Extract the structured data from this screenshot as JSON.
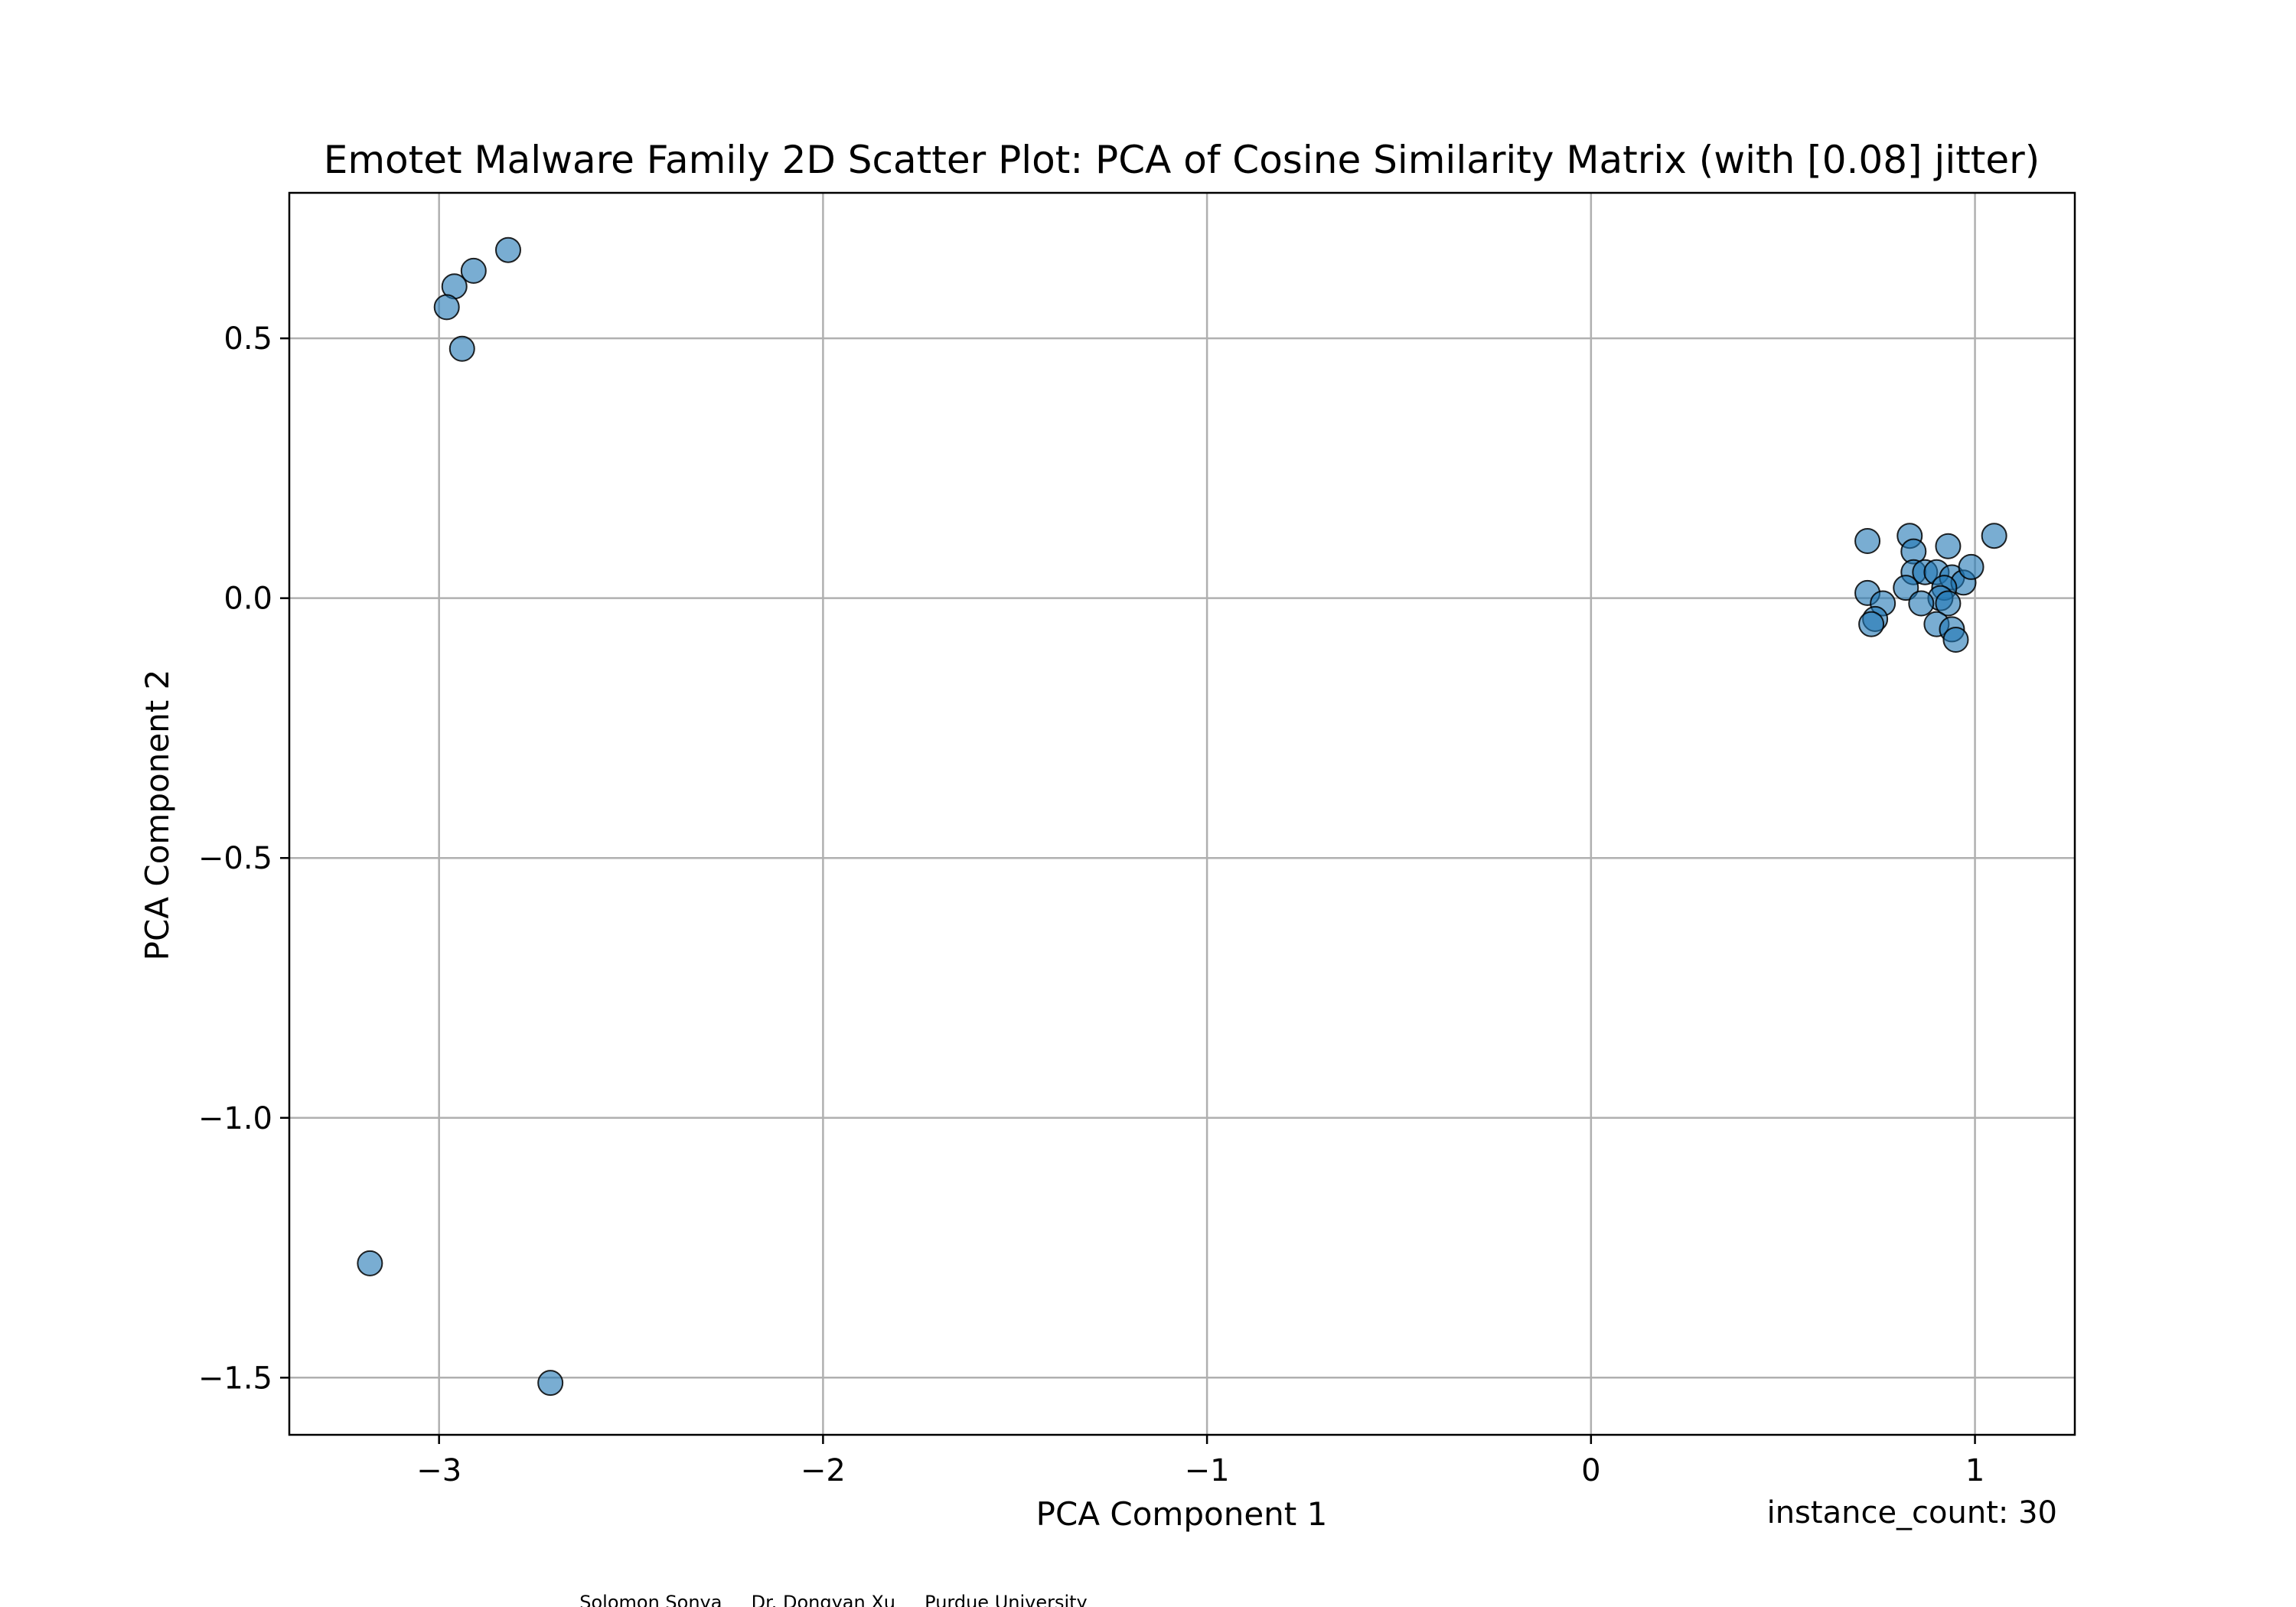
{
  "chart_data": {
    "type": "scatter",
    "title": "Emotet Malware Family 2D Scatter Plot: PCA of Cosine Similarity Matrix (with [0.08] jitter)",
    "xlabel": "PCA Component 1",
    "ylabel": "PCA Component 2",
    "xlim": [
      -3.39,
      1.26
    ],
    "ylim": [
      -1.61,
      0.78
    ],
    "xticks": [
      -3,
      -2,
      -1,
      0,
      1
    ],
    "yticks": [
      -1.5,
      -1.0,
      -0.5,
      0.0,
      0.5
    ],
    "xtick_labels": [
      "−3",
      "−2",
      "−1",
      "0",
      "1"
    ],
    "ytick_labels": [
      "−1.5",
      "−1.0",
      "−0.5",
      "0.0",
      "0.5"
    ],
    "grid": true,
    "marker_color": "#1f77b4",
    "marker_edge_color": "#000000",
    "annotation": "instance_count: 30",
    "footer_text": "Solomon Sonya     Dr. Dongyan Xu     Purdue University",
    "series": [
      {
        "points": [
          [
            -2.82,
            0.67
          ],
          [
            -2.91,
            0.63
          ],
          [
            -2.96,
            0.6
          ],
          [
            -2.98,
            0.56
          ],
          [
            -2.94,
            0.48
          ],
          [
            -3.18,
            -1.28
          ],
          [
            -2.71,
            -1.51
          ],
          [
            0.72,
            0.11
          ],
          [
            0.83,
            0.12
          ],
          [
            0.84,
            0.09
          ],
          [
            0.93,
            0.1
          ],
          [
            1.05,
            0.12
          ],
          [
            0.84,
            0.05
          ],
          [
            0.87,
            0.05
          ],
          [
            0.9,
            0.05
          ],
          [
            0.94,
            0.04
          ],
          [
            0.97,
            0.03
          ],
          [
            0.99,
            0.06
          ],
          [
            0.72,
            0.01
          ],
          [
            0.82,
            0.02
          ],
          [
            0.92,
            0.02
          ],
          [
            0.91,
            0.0
          ],
          [
            0.93,
            -0.01
          ],
          [
            0.76,
            -0.01
          ],
          [
            0.86,
            -0.01
          ],
          [
            0.74,
            -0.04
          ],
          [
            0.73,
            -0.05
          ],
          [
            0.9,
            -0.05
          ],
          [
            0.94,
            -0.06
          ],
          [
            0.95,
            -0.08
          ]
        ]
      }
    ]
  }
}
